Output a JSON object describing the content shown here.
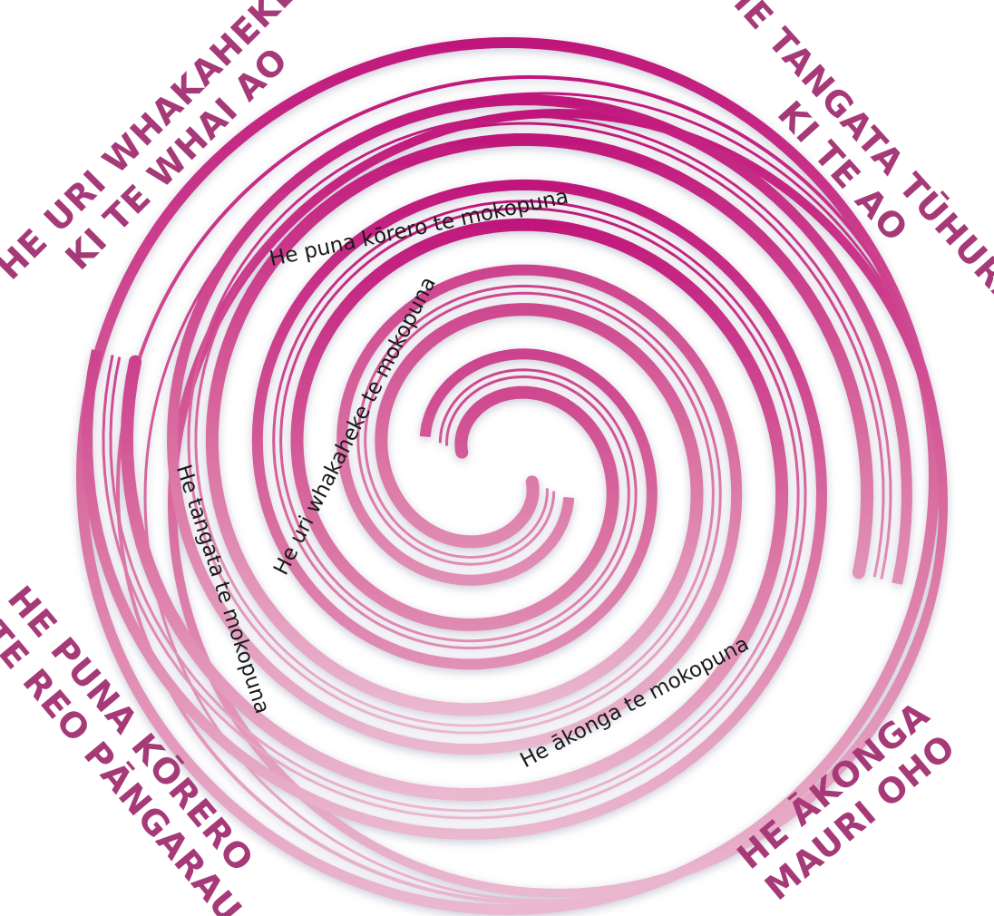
{
  "corner_labels": [
    {
      "lines": [
        "HE URI WHAKAHEKE",
        "KI TE WHAI AO"
      ]
    },
    {
      "lines": [
        "HE TANGATA TŪHURA",
        "KI TE AO"
      ]
    },
    {
      "lines": [
        "HE PUNA KŌRERO",
        "O TE REO PĀNGARAU"
      ]
    },
    {
      "lines": [
        "HE ĀKONGA",
        "MAURI OHO"
      ]
    }
  ],
  "spiral_labels": [
    "He puna kōrero te mokopuna",
    "He uri whakaheke te mokopuna",
    "He tangata te mokopuna",
    "He ākonga te mokopuna"
  ]
}
